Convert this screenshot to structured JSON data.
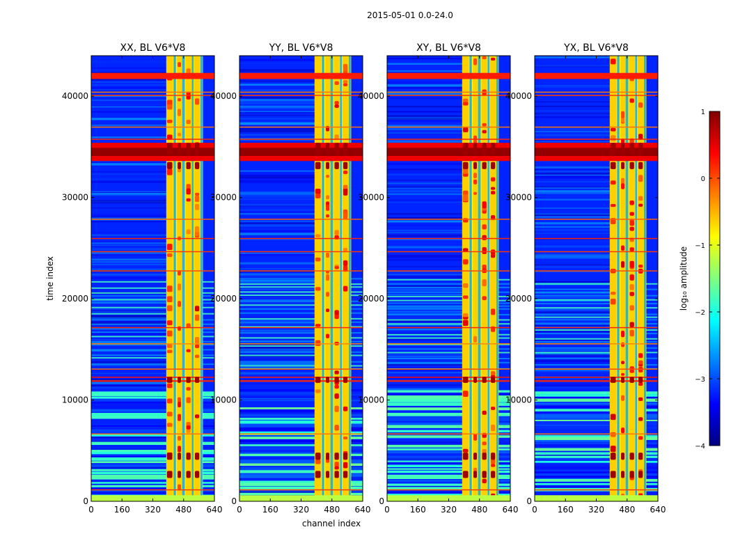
{
  "figure": {
    "suptitle": "2015-05-01 0.0-24.0",
    "xlabel": "channel index",
    "ylabel": "time index",
    "colorbar_label": "log₁₀ amplitude",
    "colorbar_ticks": [
      "1",
      "0",
      "−1",
      "−2",
      "−3",
      "−4"
    ],
    "colorbar_range": [
      -4,
      1
    ],
    "colorbar_colors": [
      "#00007f",
      "#0000ff",
      "#0080ff",
      "#00ffff",
      "#80ff80",
      "#ffff00",
      "#ff8000",
      "#ff0000",
      "#7f0000"
    ]
  },
  "chart_data": [
    {
      "type": "heatmap",
      "title": "XX, BL V6*V8",
      "xlabel": "channel index",
      "ylabel": "time index",
      "xlim": [
        0,
        640
      ],
      "ylim": [
        0,
        44000
      ],
      "xticks": [
        0,
        160,
        320,
        480,
        640
      ],
      "yticks": [
        0,
        10000,
        20000,
        30000,
        40000
      ],
      "ytick_labels": [
        "0",
        "10000",
        "20000",
        "30000",
        "40000"
      ],
      "color_scale": "jet",
      "value_range": [
        -4,
        1
      ]
    },
    {
      "type": "heatmap",
      "title": "YY, BL V6*V8",
      "xlabel": "channel index",
      "ylabel": "time index",
      "xlim": [
        0,
        640
      ],
      "ylim": [
        0,
        44000
      ],
      "xticks": [
        0,
        160,
        320,
        480,
        640
      ],
      "yticks": [
        0,
        10000,
        20000,
        30000,
        40000
      ],
      "ytick_labels": [
        "0",
        "10000",
        "20000",
        "30000",
        "40000"
      ],
      "color_scale": "jet",
      "value_range": [
        -4,
        1
      ]
    },
    {
      "type": "heatmap",
      "title": "XY, BL V6*V8",
      "xlabel": "channel index",
      "ylabel": "time index",
      "xlim": [
        0,
        640
      ],
      "ylim": [
        0,
        44000
      ],
      "xticks": [
        0,
        160,
        320,
        480,
        640
      ],
      "yticks": [
        0,
        10000,
        20000,
        30000,
        40000
      ],
      "ytick_labels": [
        "0",
        "10000",
        "20000",
        "30000",
        "40000"
      ],
      "color_scale": "jet",
      "value_range": [
        -4,
        1
      ]
    },
    {
      "type": "heatmap",
      "title": "YX, BL V6*V8",
      "xlabel": "channel index",
      "ylabel": "time index",
      "xlim": [
        0,
        640
      ],
      "ylim": [
        0,
        44000
      ],
      "xticks": [
        0,
        160,
        320,
        480,
        640
      ],
      "yticks": [
        0,
        10000,
        20000,
        30000,
        40000
      ],
      "ytick_labels": [
        "0",
        "10000",
        "20000",
        "30000",
        "40000"
      ],
      "color_scale": "jet",
      "value_range": [
        -4,
        1
      ]
    }
  ]
}
